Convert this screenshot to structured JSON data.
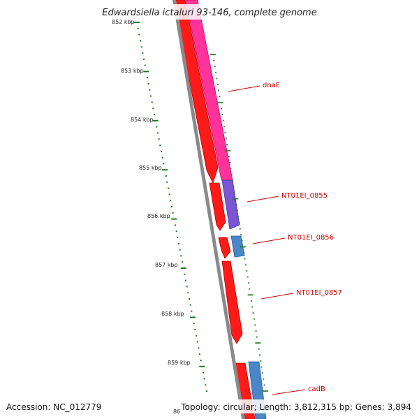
{
  "title": "Edwardsiella ictaluri 93-146, complete genome",
  "footer": {
    "accession": "Accession: NC_012779",
    "summary": "Topology: circular; Length: 3,812,315 bp; Genes: 3,894"
  },
  "colors": {
    "backbone": "#8a8a8a",
    "tick": "#1a7a1a",
    "forward_gene": "#ff1111",
    "label": "#cc0000",
    "dnaE": "#ff3399",
    "NT01EI_0855": "#7a55d6",
    "NT01EI_0856": "#4a86c8",
    "cadB": "#4a86c8"
  },
  "scale_ticks": [
    {
      "label": "852 kbp"
    },
    {
      "label": "853 kbp"
    },
    {
      "label": "854 kbp"
    },
    {
      "label": "855 kbp"
    },
    {
      "label": "856 kbp"
    },
    {
      "label": "857 kbp"
    },
    {
      "label": "858 kbp"
    },
    {
      "label": "859 kbp"
    },
    {
      "label": "86"
    }
  ],
  "genes": [
    {
      "label": "dnaE"
    },
    {
      "label": "NT01EI_0855"
    },
    {
      "label": "NT01EI_0856"
    },
    {
      "label": "NT01EI_0857"
    },
    {
      "label": "cadB"
    }
  ]
}
